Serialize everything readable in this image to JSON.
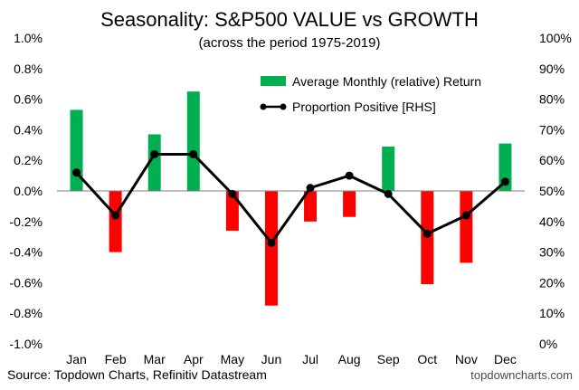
{
  "chart_data": {
    "type": "bar+line",
    "title": "Seasonality: S&P500 VALUE vs GROWTH",
    "subtitle": "(across the period 1975-2019)",
    "categories": [
      "Jan",
      "Feb",
      "Mar",
      "Apr",
      "May",
      "Jun",
      "Jul",
      "Aug",
      "Sep",
      "Oct",
      "Nov",
      "Dec"
    ],
    "series": [
      {
        "name": "Average Monthly (relative) Return",
        "type": "bar",
        "axis": "left",
        "unit": "%",
        "values": [
          0.53,
          -0.4,
          0.37,
          0.65,
          -0.26,
          -0.75,
          -0.2,
          -0.17,
          0.29,
          -0.61,
          -0.47,
          0.31
        ]
      },
      {
        "name": "Proportion Positive [RHS]",
        "type": "line",
        "axis": "right",
        "unit": "%",
        "values": [
          56,
          42,
          62,
          62,
          49,
          33,
          51,
          55,
          49,
          36,
          42,
          53
        ]
      }
    ],
    "y_left": {
      "ylim": [
        -1.0,
        1.0
      ],
      "ticks": [
        1.0,
        0.8,
        0.6,
        0.4,
        0.2,
        0.0,
        -0.2,
        -0.4,
        -0.6,
        -0.8,
        -1.0
      ],
      "tick_labels": [
        "1.0%",
        "0.8%",
        "0.6%",
        "0.4%",
        "0.2%",
        "0.0%",
        "-0.2%",
        "-0.4%",
        "-0.6%",
        "-0.8%",
        "-1.0%"
      ]
    },
    "y_right": {
      "ylim": [
        0,
        100
      ],
      "ticks": [
        100,
        90,
        80,
        70,
        60,
        50,
        40,
        30,
        20,
        10,
        0
      ],
      "tick_labels": [
        "100%",
        "90%",
        "80%",
        "70%",
        "60%",
        "50%",
        "40%",
        "30%",
        "20%",
        "10%",
        "0%"
      ]
    },
    "grid": false,
    "legend_position": "top-right",
    "colors": {
      "positive": "#00b050",
      "negative": "#ff0000",
      "line": "#000000"
    }
  },
  "footer": {
    "source": "Source: Topdown Charts, Refinitiv Datastream",
    "watermark": "topdowncharts.com"
  }
}
